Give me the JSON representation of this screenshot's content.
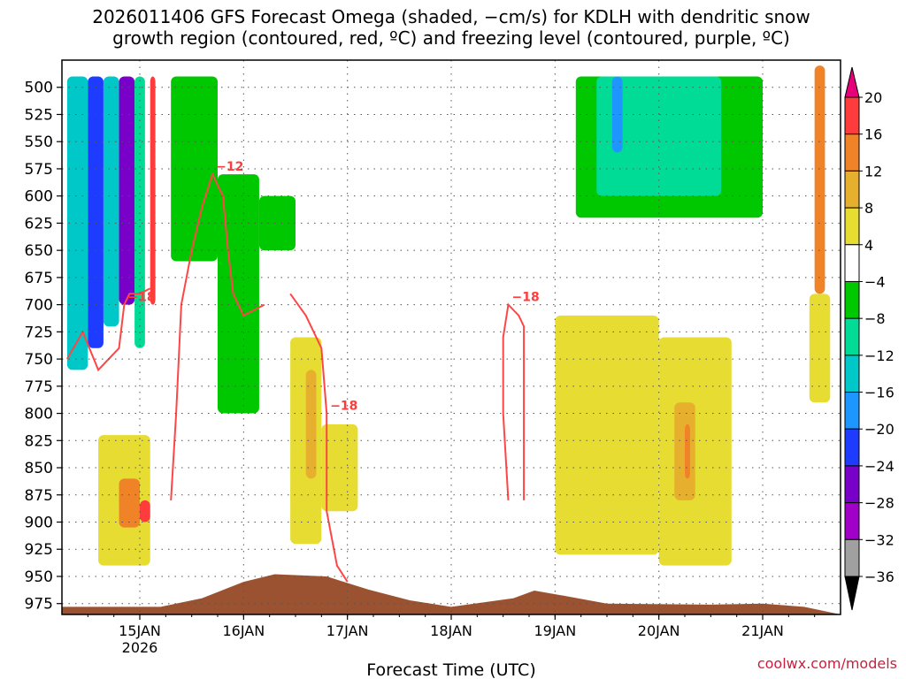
{
  "chart_data": {
    "type": "heatmap",
    "title_line1": "2026011406 GFS Forecast Omega (shaded, −cm/s) for KDLH with dendritic snow",
    "title_line2": "growth region (contoured, red, ºC) and freezing level (contoured, purple, ºC)",
    "xlabel": "Forecast Time (UTC)",
    "credit": "coolwx.com/models",
    "y_ticks": [
      500,
      525,
      550,
      575,
      600,
      625,
      650,
      675,
      700,
      725,
      750,
      775,
      800,
      825,
      850,
      875,
      900,
      925,
      950,
      975
    ],
    "y_range": [
      475,
      985
    ],
    "x_range_days": [
      14.25,
      21.75
    ],
    "x_ticks": [
      {
        "day": 15,
        "label": "15JAN",
        "sub": "2026"
      },
      {
        "day": 16,
        "label": "16JAN"
      },
      {
        "day": 17,
        "label": "17JAN"
      },
      {
        "day": 18,
        "label": "18JAN"
      },
      {
        "day": 19,
        "label": "19JAN"
      },
      {
        "day": 20,
        "label": "20JAN"
      },
      {
        "day": 21,
        "label": "21JAN"
      }
    ],
    "colorbar": {
      "levels": [
        -36,
        -32,
        -28,
        -24,
        -20,
        -16,
        -12,
        -8,
        -4,
        4,
        8,
        12,
        16,
        20
      ],
      "labels": [
        "20",
        "16",
        "12",
        "8",
        "4",
        "−4",
        "−8",
        "−12",
        "−16",
        "−20",
        "−24",
        "−28",
        "−32",
        "−36"
      ],
      "colors": [
        "#ff3c3c",
        "#f08228",
        "#e6af2d",
        "#e6dc32",
        "#ffffff",
        "#00c800",
        "#00dc96",
        "#00c8c8",
        "#1e96ff",
        "#1e3cff",
        "#7800c8",
        "#a000c8",
        "#a0a0a0"
      ],
      "top_arrow_color": "#e6007a",
      "bottom_arrow_color": "#000000"
    },
    "omega_cells": [
      {
        "t0": 14.3,
        "t1": 14.5,
        "p0": 490,
        "p1": 760,
        "v": -16
      },
      {
        "t0": 14.5,
        "t1": 14.65,
        "p0": 490,
        "p1": 740,
        "v": -24
      },
      {
        "t0": 14.65,
        "t1": 14.8,
        "p0": 490,
        "p1": 720,
        "v": -16
      },
      {
        "t0": 14.8,
        "t1": 14.95,
        "p0": 490,
        "p1": 700,
        "v": -28
      },
      {
        "t0": 14.95,
        "t1": 15.05,
        "p0": 490,
        "p1": 740,
        "v": -12
      },
      {
        "t0": 15.1,
        "t1": 15.15,
        "p0": 490,
        "p1": 700,
        "v": 16
      },
      {
        "t0": 15.3,
        "t1": 15.75,
        "p0": 490,
        "p1": 660,
        "v": -8
      },
      {
        "t0": 15.75,
        "t1": 16.15,
        "p0": 580,
        "p1": 800,
        "v": -8
      },
      {
        "t0": 16.15,
        "t1": 16.5,
        "p0": 600,
        "p1": 650,
        "v": -8
      },
      {
        "t0": 16.45,
        "t1": 16.75,
        "p0": 730,
        "p1": 920,
        "v": 4
      },
      {
        "t0": 16.75,
        "t1": 17.1,
        "p0": 810,
        "p1": 890,
        "v": 4
      },
      {
        "t0": 16.6,
        "t1": 16.7,
        "p0": 760,
        "p1": 860,
        "v": 8
      },
      {
        "t0": 14.6,
        "t1": 15.1,
        "p0": 820,
        "p1": 940,
        "v": 4
      },
      {
        "t0": 14.8,
        "t1": 15.0,
        "p0": 860,
        "p1": 905,
        "v": 12
      },
      {
        "t0": 15.0,
        "t1": 15.1,
        "p0": 880,
        "p1": 900,
        "v": 16
      },
      {
        "t0": 19.0,
        "t1": 20.0,
        "p0": 710,
        "p1": 930,
        "v": 4
      },
      {
        "t0": 20.0,
        "t1": 20.7,
        "p0": 730,
        "p1": 940,
        "v": 4
      },
      {
        "t0": 20.15,
        "t1": 20.35,
        "p0": 790,
        "p1": 880,
        "v": 8
      },
      {
        "t0": 20.25,
        "t1": 20.3,
        "p0": 810,
        "p1": 860,
        "v": 12
      },
      {
        "t0": 19.2,
        "t1": 21.0,
        "p0": 490,
        "p1": 620,
        "v": -8
      },
      {
        "t0": 19.4,
        "t1": 20.6,
        "p0": 490,
        "p1": 600,
        "v": -12
      },
      {
        "t0": 19.55,
        "t1": 19.65,
        "p0": 490,
        "p1": 560,
        "v": -20
      },
      {
        "t0": 21.5,
        "t1": 21.6,
        "p0": 480,
        "p1": 690,
        "v": 12
      },
      {
        "t0": 21.45,
        "t1": 21.65,
        "p0": 690,
        "p1": 790,
        "v": 4
      }
    ],
    "dgz_contours": [
      {
        "label": "−18",
        "points": [
          [
            14.3,
            750
          ],
          [
            14.45,
            725
          ],
          [
            14.6,
            760
          ],
          [
            14.8,
            740
          ],
          [
            14.85,
            700
          ],
          [
            14.9,
            690
          ],
          [
            15.0,
            690
          ],
          [
            15.1,
            685
          ]
        ]
      },
      {
        "label": "−12",
        "points": [
          [
            15.3,
            880
          ],
          [
            15.35,
            800
          ],
          [
            15.4,
            700
          ],
          [
            15.5,
            650
          ],
          [
            15.6,
            610
          ],
          [
            15.7,
            580
          ],
          [
            15.8,
            600
          ],
          [
            15.85,
            650
          ],
          [
            15.9,
            690
          ],
          [
            16.0,
            710
          ],
          [
            16.2,
            700
          ]
        ]
      },
      {
        "label": "−18",
        "points": [
          [
            16.45,
            690
          ],
          [
            16.6,
            710
          ],
          [
            16.75,
            740
          ],
          [
            16.8,
            800
          ],
          [
            16.8,
            890
          ],
          [
            16.9,
            940
          ],
          [
            17.0,
            955
          ]
        ]
      },
      {
        "label": "−18",
        "points": [
          [
            18.55,
            880
          ],
          [
            18.5,
            800
          ],
          [
            18.5,
            730
          ],
          [
            18.55,
            700
          ],
          [
            18.65,
            710
          ],
          [
            18.7,
            720
          ],
          [
            18.7,
            880
          ]
        ]
      }
    ],
    "terrain_color": "#9b5230"
  }
}
